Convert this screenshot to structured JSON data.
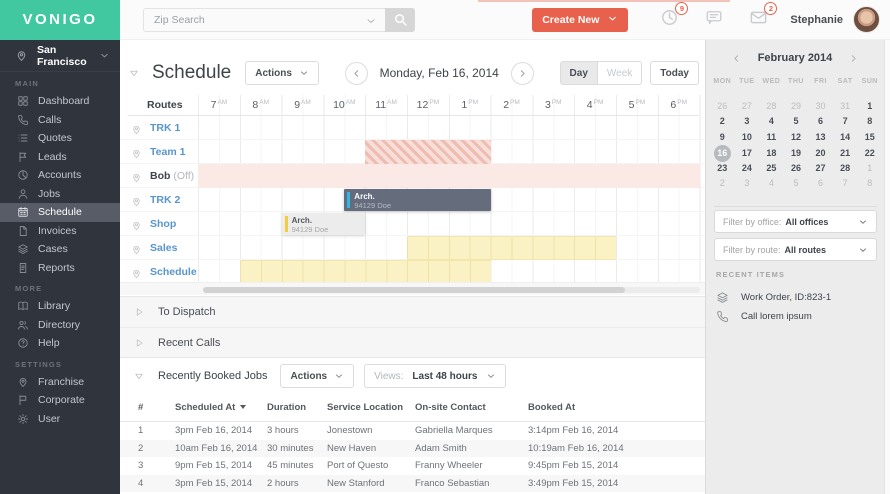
{
  "header": {
    "logo": "VONIGO",
    "zip_search_placeholder": "Zip Search",
    "create_new_label": "Create New",
    "notifications": {
      "clock_badge": "9",
      "mail_badge": "2"
    },
    "user_name": "Stephanie"
  },
  "sidebar": {
    "location": "San Francisco",
    "sections": [
      {
        "label": "MAIN",
        "items": [
          {
            "icon": "grid",
            "label": "Dashboard",
            "active": false
          },
          {
            "icon": "phone",
            "label": "Calls",
            "active": false
          },
          {
            "icon": "list",
            "label": "Quotes",
            "active": false
          },
          {
            "icon": "pennant",
            "label": "Leads",
            "active": false
          },
          {
            "icon": "pie",
            "label": "Accounts",
            "active": false
          },
          {
            "icon": "person",
            "label": "Jobs",
            "active": false
          },
          {
            "icon": "calendar",
            "label": "Schedule",
            "active": true
          },
          {
            "icon": "document",
            "label": "Invoices",
            "active": false
          },
          {
            "icon": "layers",
            "label": "Cases",
            "active": false
          },
          {
            "icon": "report",
            "label": "Reports",
            "active": false
          }
        ]
      },
      {
        "label": "MORE",
        "items": [
          {
            "icon": "book",
            "label": "Library",
            "active": false
          },
          {
            "icon": "people",
            "label": "Directory",
            "active": false
          },
          {
            "icon": "help",
            "label": "Help",
            "active": false
          }
        ]
      },
      {
        "label": "SETTINGS",
        "items": [
          {
            "icon": "pin",
            "label": "Franchise",
            "active": false
          },
          {
            "icon": "flag",
            "label": "Corporate",
            "active": false
          },
          {
            "icon": "gear",
            "label": "User",
            "active": false
          }
        ]
      }
    ]
  },
  "schedule": {
    "title": "Schedule",
    "actions_label": "Actions",
    "date_label": "Monday, Feb 16, 2014",
    "day_label": "Day",
    "week_label": "Week",
    "today_label": "Today",
    "routes_header": "Routes",
    "axis_start_hour": 7,
    "hours": [
      {
        "n": "7",
        "ap": "AM"
      },
      {
        "n": "8",
        "ap": "AM"
      },
      {
        "n": "9",
        "ap": "AM"
      },
      {
        "n": "10",
        "ap": "AM"
      },
      {
        "n": "11",
        "ap": "AM"
      },
      {
        "n": "12",
        "ap": "PM"
      },
      {
        "n": "1",
        "ap": "PM"
      },
      {
        "n": "2",
        "ap": "PM"
      },
      {
        "n": "3",
        "ap": "PM"
      },
      {
        "n": "4",
        "ap": "PM"
      },
      {
        "n": "5",
        "ap": "PM"
      },
      {
        "n": "6",
        "ap": "PM"
      }
    ],
    "rows": [
      {
        "name": "TRK 1",
        "suffix": "",
        "blocks": []
      },
      {
        "name": "Team 1",
        "suffix": "",
        "blocks": [
          {
            "type": "hatched",
            "start": 11,
            "end": 14
          }
        ]
      },
      {
        "name": "Bob",
        "suffix": "(Off)",
        "blocks": [
          {
            "type": "off-bg",
            "start": 7,
            "end": 19
          }
        ]
      },
      {
        "name": "TRK 2",
        "suffix": "",
        "blocks": [
          {
            "type": "dark",
            "start": 10.5,
            "end": 14,
            "title": "Arch.",
            "subtitle": "94129 Doe",
            "accent": "#33b5e5"
          }
        ]
      },
      {
        "name": "Shop",
        "suffix": "",
        "blocks": [
          {
            "type": "light",
            "start": 9,
            "end": 11,
            "title": "Arch.",
            "subtitle": "94129 Doe",
            "accent": "#f2ce3e"
          }
        ]
      },
      {
        "name": "Sales",
        "suffix": "",
        "blocks": [
          {
            "type": "yellow",
            "start": 12,
            "end": 17
          }
        ]
      },
      {
        "name": "Schedule",
        "suffix": "",
        "blocks": [
          {
            "type": "yellow",
            "start": 8,
            "end": 14
          }
        ]
      }
    ]
  },
  "collapsed_panels": [
    {
      "label": "To Dispatch"
    },
    {
      "label": "Recent Calls"
    }
  ],
  "booked_jobs": {
    "title": "Recently Booked Jobs",
    "actions_label": "Actions",
    "views_label": "Views:",
    "views_value": "Last 48 hours",
    "columns": [
      "#",
      "Scheduled At",
      "Duration",
      "Service Location",
      "On-site Contact",
      "Booked At"
    ],
    "sorted_column": "Scheduled At",
    "rows": [
      [
        "1",
        "3pm Feb 16, 2014",
        "3 hours",
        "Jonestown",
        "Gabriella Marques",
        "3:14pm Feb 16, 2014"
      ],
      [
        "2",
        "10am Feb 16, 2014",
        "30 minutes",
        "New Haven",
        "Adam Smith",
        "10:19am Feb 16, 2014"
      ],
      [
        "3",
        "9pm Feb 15, 2014",
        "45 minutes",
        "Port of Questo",
        "Franny Wheeler",
        "9:45pm Feb 15, 2014"
      ],
      [
        "4",
        "3pm Feb 15, 2014",
        "2 hours",
        "New Stanford",
        "Franco Sebastian",
        "3:49pm Feb 15, 2014"
      ]
    ]
  },
  "right_panel": {
    "calendar": {
      "month_label": "February 2014",
      "day_headers": [
        "MON",
        "TUE",
        "WED",
        "THU",
        "FRI",
        "SAT",
        "SUN"
      ],
      "selected_day": "16",
      "weeks": [
        [
          {
            "d": "26",
            "m": 1
          },
          {
            "d": "27",
            "m": 1
          },
          {
            "d": "28",
            "m": 1
          },
          {
            "d": "29",
            "m": 1
          },
          {
            "d": "30",
            "m": 1
          },
          {
            "d": "31",
            "m": 1
          },
          {
            "d": "1",
            "m": 0
          }
        ],
        [
          {
            "d": "2",
            "m": 0
          },
          {
            "d": "3",
            "m": 0
          },
          {
            "d": "4",
            "m": 0
          },
          {
            "d": "5",
            "m": 0
          },
          {
            "d": "6",
            "m": 0
          },
          {
            "d": "7",
            "m": 0
          },
          {
            "d": "8",
            "m": 0
          }
        ],
        [
          {
            "d": "9",
            "m": 0
          },
          {
            "d": "10",
            "m": 0
          },
          {
            "d": "11",
            "m": 0
          },
          {
            "d": "12",
            "m": 0
          },
          {
            "d": "13",
            "m": 0
          },
          {
            "d": "14",
            "m": 0
          },
          {
            "d": "15",
            "m": 0
          }
        ],
        [
          {
            "d": "16",
            "m": 0,
            "sel": 1
          },
          {
            "d": "17",
            "m": 0
          },
          {
            "d": "18",
            "m": 0
          },
          {
            "d": "19",
            "m": 0
          },
          {
            "d": "20",
            "m": 0
          },
          {
            "d": "21",
            "m": 0
          },
          {
            "d": "22",
            "m": 0
          }
        ],
        [
          {
            "d": "23",
            "m": 0
          },
          {
            "d": "24",
            "m": 0
          },
          {
            "d": "25",
            "m": 0
          },
          {
            "d": "26",
            "m": 0
          },
          {
            "d": "27",
            "m": 0
          },
          {
            "d": "28",
            "m": 0
          },
          {
            "d": "1",
            "m": 1
          }
        ],
        [
          {
            "d": "2",
            "m": 1
          },
          {
            "d": "3",
            "m": 1
          },
          {
            "d": "4",
            "m": 1
          },
          {
            "d": "5",
            "m": 1
          },
          {
            "d": "6",
            "m": 1
          },
          {
            "d": "7",
            "m": 1
          },
          {
            "d": "8",
            "m": 1
          }
        ]
      ]
    },
    "filters": [
      {
        "label": "Filter by office:",
        "value": "All offices"
      },
      {
        "label": "Filter by route:",
        "value": "All routes"
      }
    ],
    "recent_items_label": "RECENT ITEMS",
    "recent_items": [
      {
        "icon": "layers",
        "label": "Work Order, ID:823-1"
      },
      {
        "icon": "phone",
        "label": "Call lorem ipsum"
      }
    ]
  },
  "colors": {
    "brand_teal": "#41c8a1",
    "accent_red": "#e8614d",
    "route_link_blue": "#5795cc",
    "block_dark": "#656c7c",
    "block_accent_blue": "#33b5e5",
    "block_accent_yellow": "#f2ce3e",
    "block_yellow": "#faf1c4",
    "off_row_pink": "#fbe9e6",
    "hatch_pink": "#efbcb2",
    "sidebar_bg": "#30343d"
  }
}
